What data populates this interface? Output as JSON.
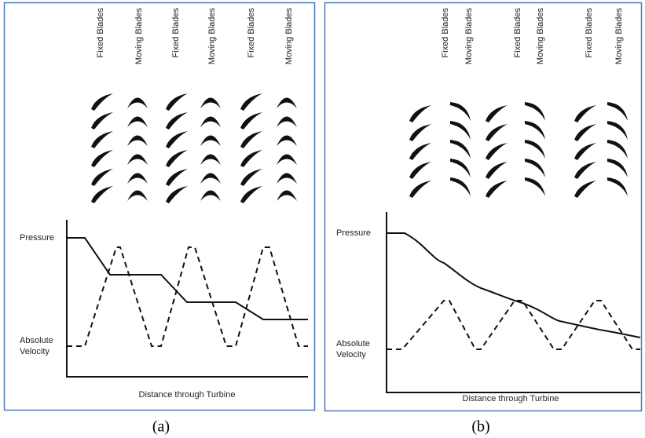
{
  "panels": [
    {
      "blade_labels": [
        "Fixed Blades",
        "Moving Blades",
        "Fixed Blades",
        "Moving Blades",
        "Fixed Blades",
        "Moving Blades"
      ],
      "pressure_label": "Pressure",
      "velocity_label": [
        "Absolute",
        "Velocity"
      ],
      "x_axis_label": "Distance through Turbine",
      "caption": "(a)"
    },
    {
      "blade_labels": [
        "Fixed Blades",
        "Moving Blades",
        "Fixed Blades",
        "Moving Blades",
        "Fixed Blades",
        "Moving Blades"
      ],
      "pressure_label": "Pressure",
      "velocity_label": [
        "Absolute",
        "Velocity"
      ],
      "x_axis_label": "Distance through Turbine",
      "caption": "(b)"
    }
  ]
}
